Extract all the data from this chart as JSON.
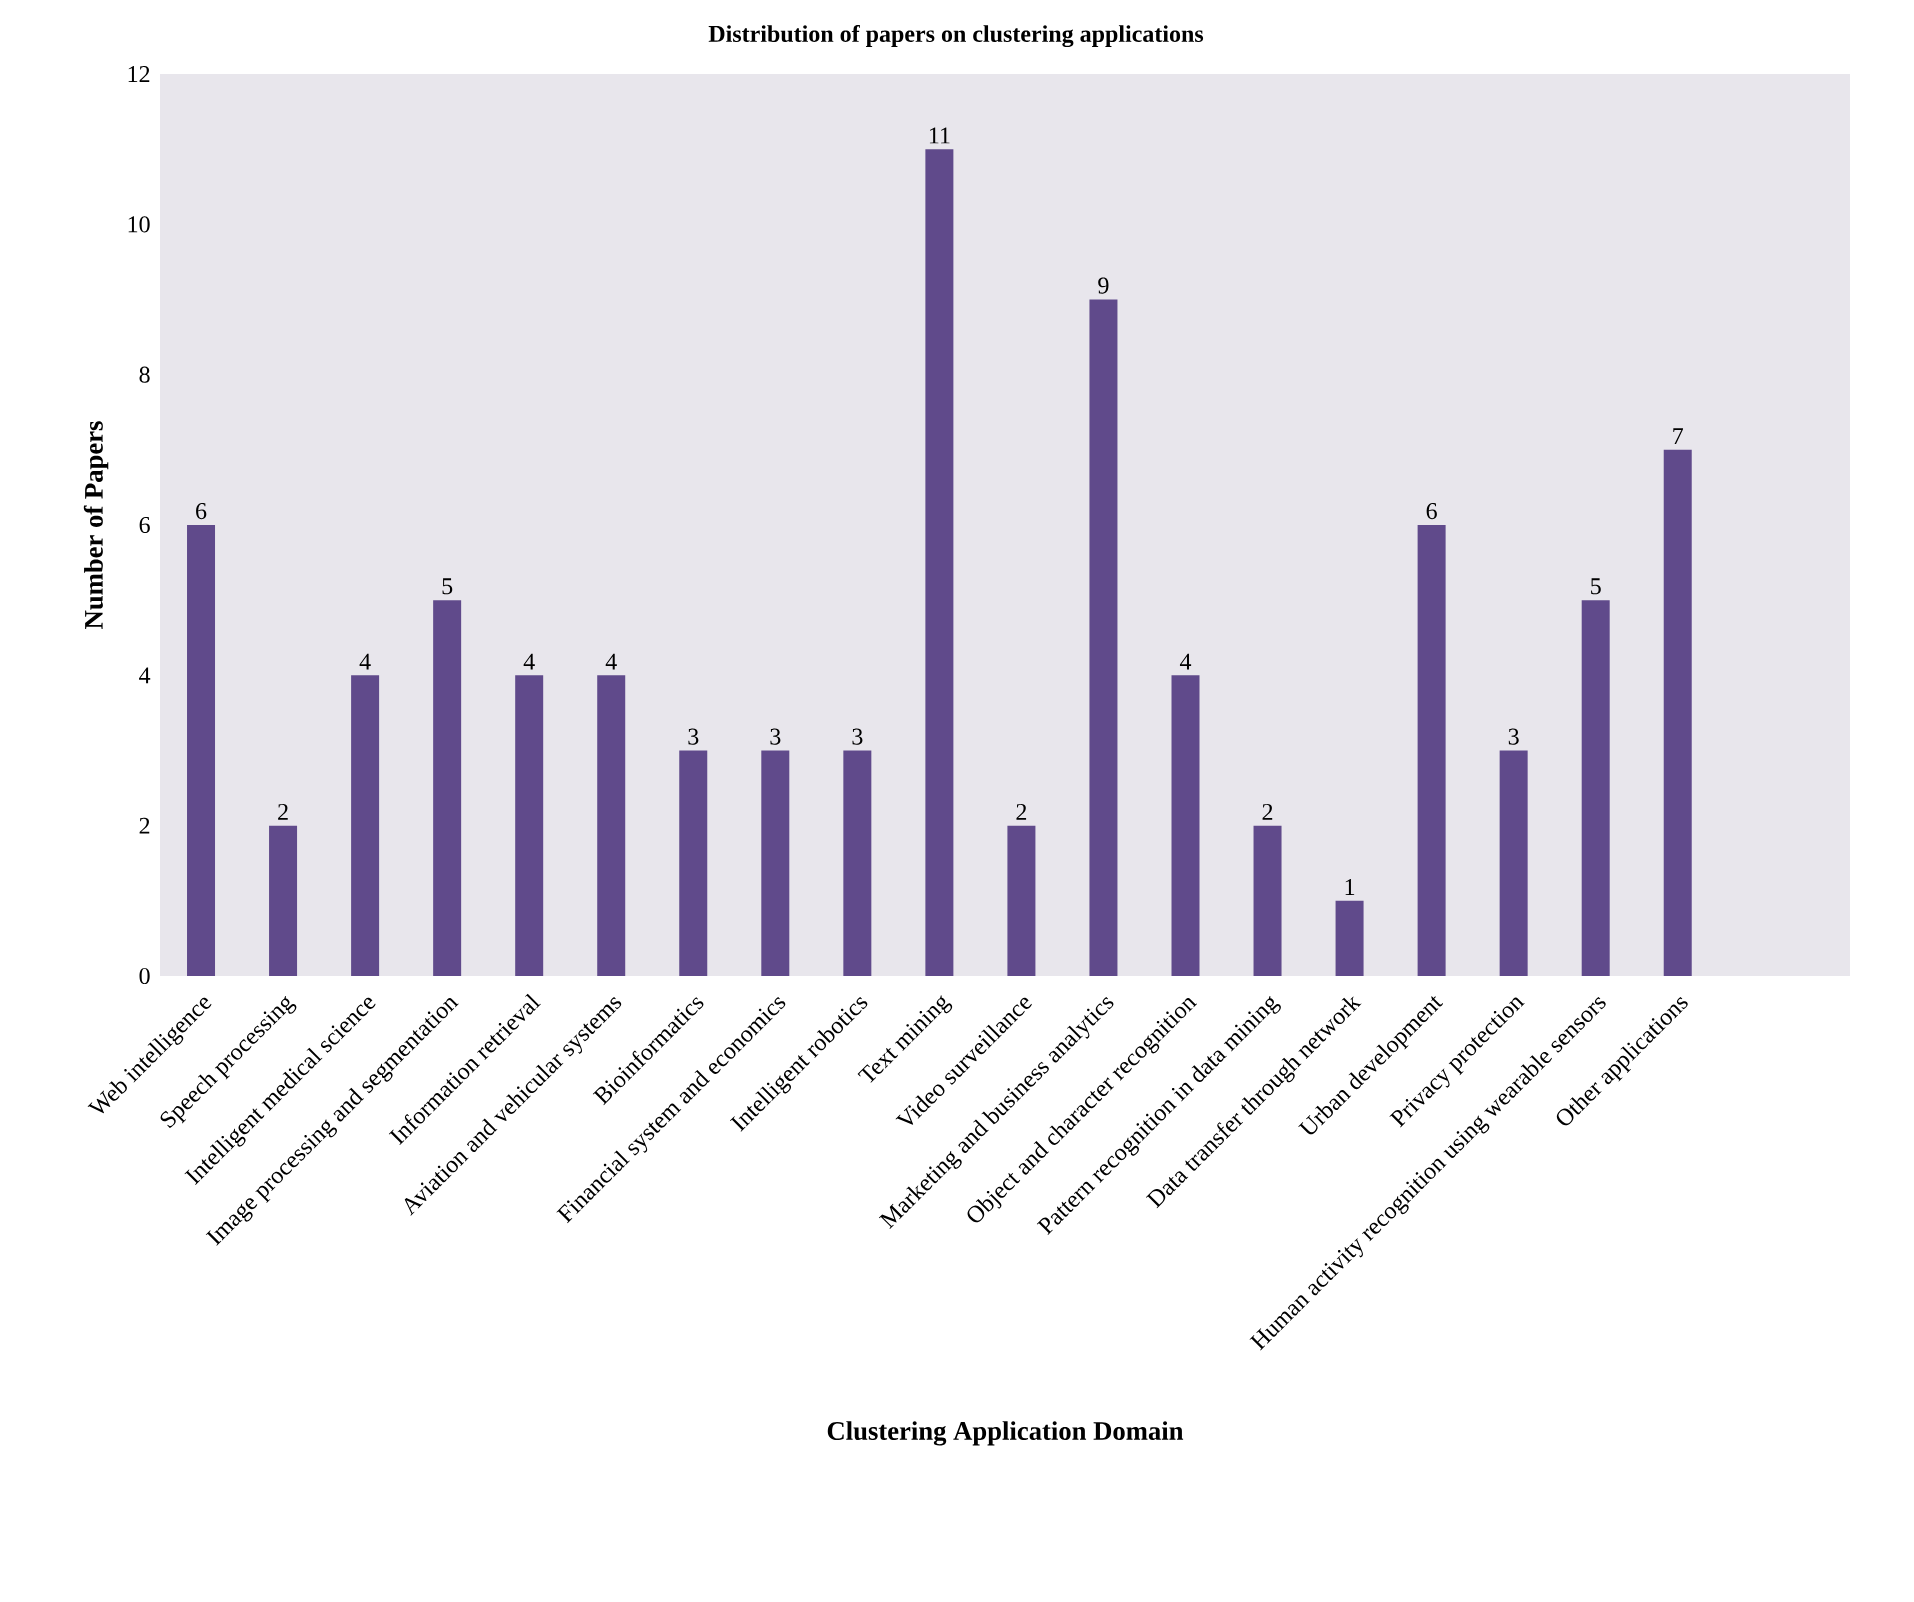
{
  "chart_data": {
    "type": "bar",
    "title": "Distribution of papers on clustering applications",
    "xlabel": "Clustering Application Domain",
    "ylabel": "Number of Papers",
    "categories": [
      "Web intelligence",
      "Speech processing",
      "Intelligent medical science",
      "Image processing and segmentation",
      "Information retrieval",
      "Aviation and vehicular systems",
      "Bioinformatics",
      "Financial system and economics",
      "Intelligent robotics",
      "Text mining",
      "Video surveillance",
      "Marketing and business analytics",
      "Object and character recognition",
      "Pattern recognition in data mining",
      "Data transfer through network",
      "Urban development",
      "Privacy protection",
      "Human activity recognition using wearable sensors",
      "Other applications"
    ],
    "values": [
      6,
      2,
      4,
      5,
      4,
      4,
      3,
      3,
      3,
      11,
      2,
      9,
      4,
      2,
      1,
      6,
      3,
      5,
      7
    ],
    "color": "#604a8b",
    "ylim": [
      0,
      12
    ],
    "yticks": [
      0,
      2,
      4,
      6,
      8,
      10,
      12
    ],
    "data_labels": true,
    "grid": false
  }
}
